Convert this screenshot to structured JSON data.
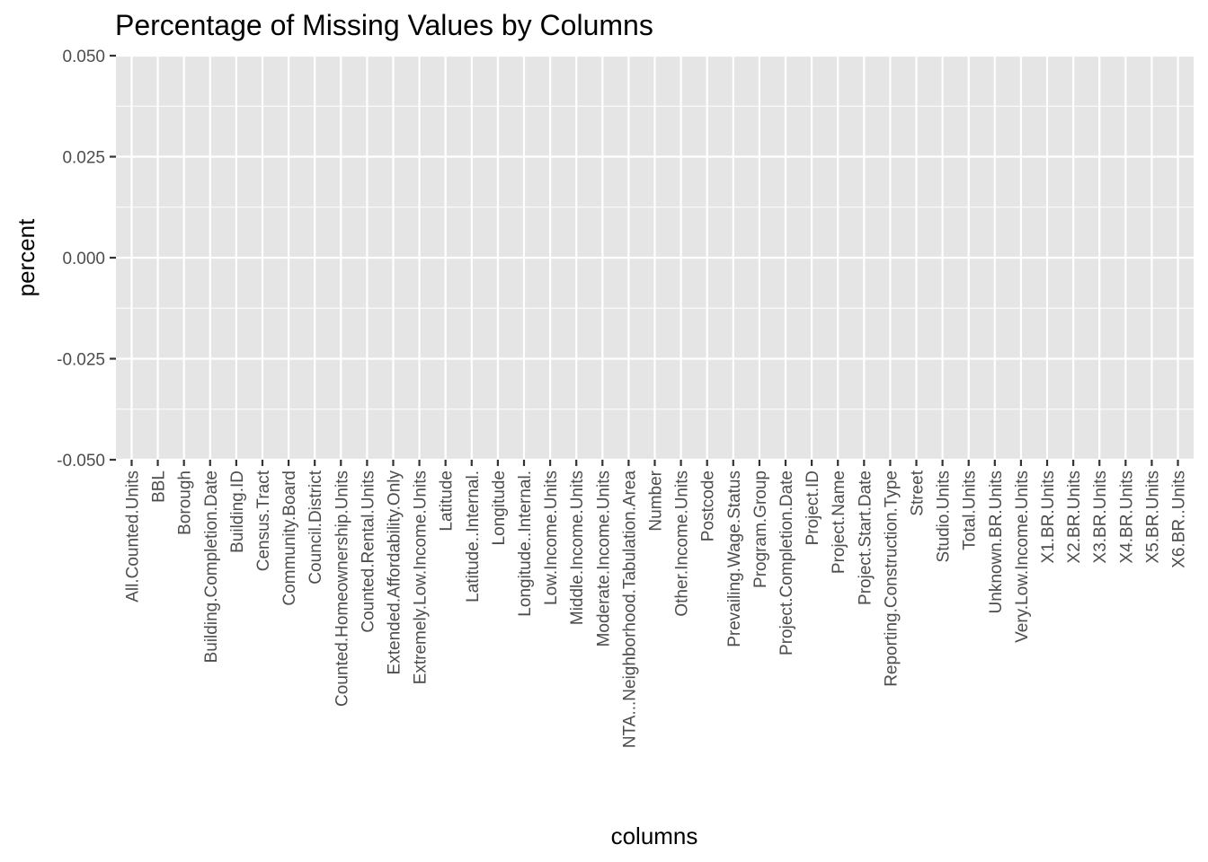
{
  "chart_data": {
    "type": "bar",
    "title": "Percentage of Missing Values by Columns",
    "xlabel": "columns",
    "ylabel": "percent",
    "ylim": [
      -0.05,
      0.05
    ],
    "yticks": [
      "0.050",
      "0.025",
      "0.000",
      "-0.025",
      "-0.050"
    ],
    "ytick_values": [
      0.05,
      0.025,
      0.0,
      -0.025,
      -0.05
    ],
    "grid": true,
    "categories": [
      "All.Counted.Units",
      "BBL",
      "Borough",
      "Building.Completion.Date",
      "Building.ID",
      "Census.Tract",
      "Community.Board",
      "Council.District",
      "Counted.Homeownership.Units",
      "Counted.Rental.Units",
      "Extended.Affordability.Only",
      "Extremely.Low.Income.Units",
      "Latitude",
      "Latitude..Internal.",
      "Longitude",
      "Longitude..Internal.",
      "Low.Income.Units",
      "Middle.Income.Units",
      "Moderate.Income.Units",
      "NTA...Neighborhood.Tabulation.Area",
      "Number",
      "Other.Income.Units",
      "Postcode",
      "Prevailing.Wage.Status",
      "Program.Group",
      "Project.Completion.Date",
      "Project.ID",
      "Project.Name",
      "Project.Start.Date",
      "Reporting.Construction.Type",
      "Street",
      "Studio.Units",
      "Total.Units",
      "Unknown.BR.Units",
      "Very.Low.Income.Units",
      "X1.BR.Units",
      "X2.BR.Units",
      "X3.BR.Units",
      "X4.BR.Units",
      "X5.BR.Units",
      "X6.BR..Units"
    ],
    "values": [
      0,
      0,
      0,
      0,
      0,
      0,
      0,
      0,
      0,
      0,
      0,
      0,
      0,
      0,
      0,
      0,
      0,
      0,
      0,
      0,
      0,
      0,
      0,
      0,
      0,
      0,
      0,
      0,
      0,
      0,
      0,
      0,
      0,
      0,
      0,
      0,
      0,
      0,
      0,
      0,
      0
    ],
    "colors": {
      "panel": "#e5e5e5",
      "grid": "#ffffff",
      "tick": "#333333",
      "tick_label": "#4d4d4d",
      "bar": "#595959"
    }
  }
}
